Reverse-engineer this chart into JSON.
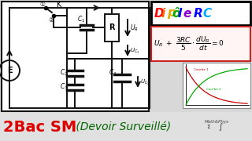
{
  "bg_color": "#d8d8d8",
  "circuit_bg": "#ffffff",
  "circuit_border": "#000000",
  "title_bg": "#ffffff",
  "title_border": "#000000",
  "eq_bg": "#fff0f0",
  "eq_border": "#cc0000",
  "graph_bg": "#f0f0ff",
  "title_chars": [
    "D",
    "i",
    "p",
    "ô",
    "l",
    "e",
    " ",
    "R",
    "C"
  ],
  "title_colors": [
    "#ff0000",
    "#ff6600",
    "#ddaa00",
    "#00aa00",
    "#0000ff",
    "#8800cc",
    "#ffffff",
    "#0000ff",
    "#00aaff"
  ],
  "bottom_bg": "#e8e8e8",
  "bottom_text1": "2Bac SM",
  "bottom_text1_color": "#dd0000",
  "bottom_text2": " (Devoir Surveillé)",
  "bottom_text2_color": "#006600",
  "wire_color": "#111111",
  "lw": 1.4
}
